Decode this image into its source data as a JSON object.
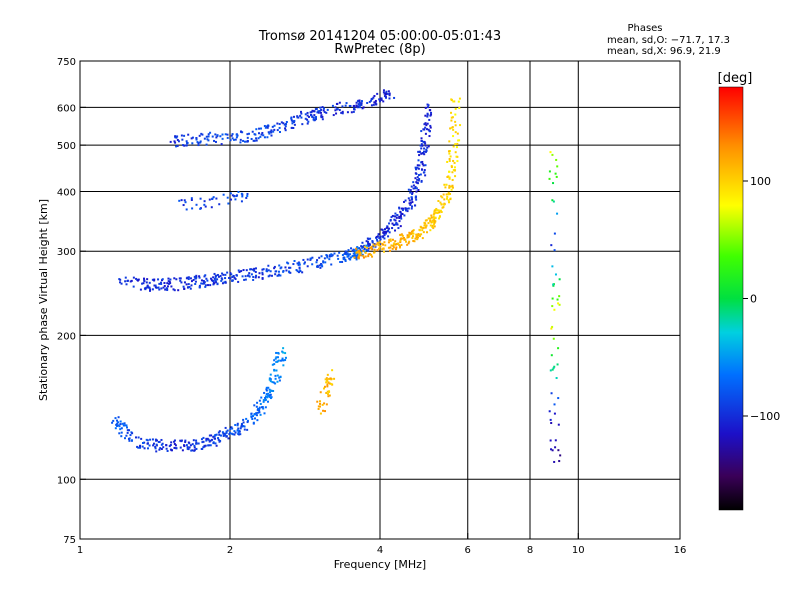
{
  "chart_data": {
    "type": "scatter",
    "title": "Tromsø 20141204 05:00:00-05:01:43",
    "subtitle": "RwPretec (8p)",
    "xlabel": "Frequency [MHz]",
    "ylabel": "Stationary phase Virtual Height [km]",
    "x_scale": "log",
    "y_scale": "log",
    "xlim": [
      1,
      16
    ],
    "ylim": [
      75,
      750
    ],
    "x_ticks": [
      1,
      2,
      4,
      6,
      8,
      10,
      16
    ],
    "x_tick_labels": [
      "1",
      "2",
      "4",
      "6",
      "8",
      "10",
      "16"
    ],
    "x_grid_lines": [
      2,
      4,
      6,
      8,
      10
    ],
    "y_ticks": [
      75,
      100,
      200,
      300,
      400,
      500,
      600,
      750
    ],
    "y_tick_labels": [
      "75",
      "100",
      "200",
      "300",
      "400",
      "500",
      "600",
      "750"
    ],
    "y_grid_lines": [
      100,
      200,
      300,
      400,
      500,
      600
    ],
    "grid": true,
    "legend": {
      "title": "Phases",
      "line1": "mean, sd,O: −71.7, 17.3",
      "line2": "mean, sd,X:  96.9, 21.9",
      "placement": "top-right"
    },
    "colorbar": {
      "label": "[deg]",
      "range": [
        -180,
        180
      ],
      "ticks": [
        100,
        0,
        -100
      ],
      "tick_labels": [
        "100",
        "0",
        "−100"
      ],
      "colormap": "rainbow: black(-180) → purple → blue → cyan → green(0) → yellow → orange → red(180)"
    },
    "traces": [
      {
        "note_from_image": "E-layer trace (blue/cyan)",
        "f": [
          1.15,
          1.3,
          1.5,
          1.7,
          1.9,
          2.1,
          2.3,
          2.45,
          2.55
        ],
        "h": [
          135,
          120,
          117,
          118,
          122,
          128,
          140,
          160,
          185
        ],
        "phase": [
          -70,
          -90,
          -100,
          -95,
          -90,
          -80,
          -70,
          -60,
          -50
        ]
      },
      {
        "note_from_image": "F1 low trace (blue)",
        "f": [
          1.2,
          1.4,
          1.6,
          1.8,
          2.0,
          2.3,
          2.7,
          3.1,
          3.5,
          3.7
        ],
        "h": [
          258,
          255,
          256,
          260,
          265,
          270,
          278,
          287,
          296,
          300
        ],
        "phase": [
          -100,
          -100,
          -100,
          -95,
          -100,
          -95,
          -90,
          -85,
          -80,
          -60
        ]
      },
      {
        "note_from_image": "F2 O-mode trace (blue)",
        "f": [
          3.7,
          4.0,
          4.3,
          4.6,
          4.8,
          4.9,
          5.0
        ],
        "h": [
          305,
          320,
          345,
          380,
          430,
          500,
          600
        ],
        "phase": [
          -95,
          -100,
          -105,
          -100,
          -100,
          -100,
          -105
        ]
      },
      {
        "note_from_image": "F2 X-mode trace (orange/yellow)",
        "f": [
          3.6,
          4.0,
          4.4,
          4.8,
          5.1,
          5.4,
          5.6,
          5.7
        ],
        "h": [
          295,
          305,
          315,
          325,
          345,
          380,
          460,
          640
        ],
        "phase": [
          120,
          120,
          115,
          110,
          105,
          100,
          95,
          90
        ]
      },
      {
        "note_from_image": "Upper trace near 510-600 km (blue)",
        "f": [
          1.5,
          1.8,
          2.2,
          2.5,
          2.9,
          3.3,
          3.7,
          4.2
        ],
        "h": [
          510,
          515,
          522,
          545,
          575,
          595,
          610,
          640
        ],
        "phase": [
          -95,
          -90,
          -85,
          -90,
          -95,
          -100,
          -100,
          -105
        ]
      },
      {
        "note_from_image": "Mid trace 370-400 km (blue)",
        "f": [
          1.6,
          1.8,
          2.0,
          2.2
        ],
        "h": [
          375,
          380,
          385,
          390
        ],
        "phase": [
          -90,
          -95,
          -90,
          -80
        ]
      },
      {
        "note_from_image": "Small cluster ~3.15 MHz (yellow)",
        "f": [
          3.05,
          3.1,
          3.15,
          3.2
        ],
        "h": [
          140,
          150,
          160,
          165
        ],
        "phase": [
          115,
          110,
          110,
          105
        ]
      },
      {
        "note_from_image": "Sparse points near 9 MHz",
        "f": [
          8.9,
          8.95,
          9.0,
          8.95,
          9.0
        ],
        "h": [
          500,
          300,
          220,
          140,
          110
        ],
        "phase": [
          80,
          -100,
          100,
          -110,
          -130
        ]
      }
    ]
  }
}
